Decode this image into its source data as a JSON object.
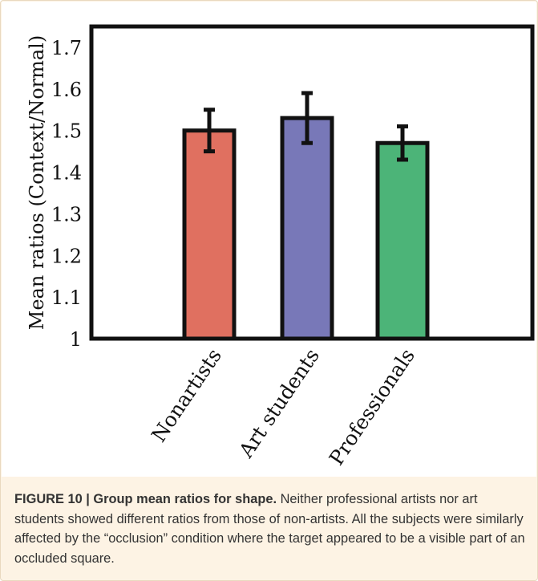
{
  "chart_data": {
    "type": "bar",
    "title": "",
    "xlabel": "",
    "ylabel": "Mean ratios (Context/Normal)",
    "categories": [
      "Nonartists",
      "Art students",
      "Professionals"
    ],
    "values": [
      1.5,
      1.53,
      1.47
    ],
    "error_low": [
      1.45,
      1.47,
      1.43
    ],
    "error_high": [
      1.55,
      1.59,
      1.51
    ],
    "colors": [
      "#e07060",
      "#7878b8",
      "#4cb478"
    ],
    "ylim": [
      1.0,
      1.75
    ],
    "yticks": [
      1,
      1.1,
      1.2,
      1.3,
      1.4,
      1.5,
      1.6,
      1.7
    ],
    "ytick_labels": [
      "1",
      "1.1",
      "1.2",
      "1.3",
      "1.4",
      "1.5",
      "1.6",
      "1.7"
    ],
    "grid": false,
    "legend": "none"
  },
  "caption": {
    "label": "FIGURE 10 | Group mean ratios for shape.",
    "text": " Neither professional artists nor art students showed different ratios from those of non-artists. All the subjects were similarly affected by the “occlusion” condition where the target appeared to be a visible part of an occluded square."
  }
}
